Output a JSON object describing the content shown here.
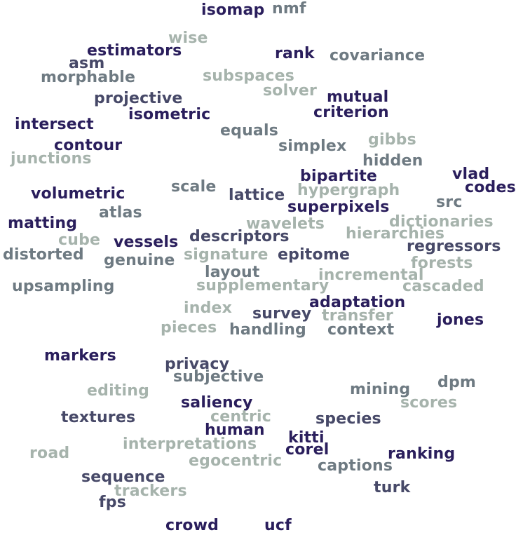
{
  "palette": {
    "darkest": "#2a1e5c",
    "dark": "#474968",
    "medium": "#6e7a82",
    "light": "#a6b3ac"
  },
  "words": [
    {
      "text": "isomap",
      "tone": "c1"
    },
    {
      "text": "nmf",
      "tone": "c3"
    },
    {
      "text": "wise",
      "tone": "c4"
    },
    {
      "text": "estimators",
      "tone": "c1"
    },
    {
      "text": "rank",
      "tone": "c1"
    },
    {
      "text": "covariance",
      "tone": "c3"
    },
    {
      "text": "asm",
      "tone": "c2"
    },
    {
      "text": "morphable",
      "tone": "c3"
    },
    {
      "text": "subspaces",
      "tone": "c4"
    },
    {
      "text": "solver",
      "tone": "c4"
    },
    {
      "text": "mutual",
      "tone": "c1"
    },
    {
      "text": "projective",
      "tone": "c2"
    },
    {
      "text": "criterion",
      "tone": "c1"
    },
    {
      "text": "isometric",
      "tone": "c1"
    },
    {
      "text": "intersect",
      "tone": "c1"
    },
    {
      "text": "equals",
      "tone": "c3"
    },
    {
      "text": "gibbs",
      "tone": "c4"
    },
    {
      "text": "contour",
      "tone": "c1"
    },
    {
      "text": "simplex",
      "tone": "c3"
    },
    {
      "text": "junctions",
      "tone": "c4"
    },
    {
      "text": "hidden",
      "tone": "c3"
    },
    {
      "text": "bipartite",
      "tone": "c1"
    },
    {
      "text": "vlad",
      "tone": "c1"
    },
    {
      "text": "scale",
      "tone": "c3"
    },
    {
      "text": "codes",
      "tone": "c1"
    },
    {
      "text": "volumetric",
      "tone": "c1"
    },
    {
      "text": "lattice",
      "tone": "c2"
    },
    {
      "text": "hypergraph",
      "tone": "c4"
    },
    {
      "text": "src",
      "tone": "c3"
    },
    {
      "text": "atlas",
      "tone": "c3"
    },
    {
      "text": "superpixels",
      "tone": "c1"
    },
    {
      "text": "matting",
      "tone": "c1"
    },
    {
      "text": "wavelets",
      "tone": "c4"
    },
    {
      "text": "dictionaries",
      "tone": "c4"
    },
    {
      "text": "hierarchies",
      "tone": "c4"
    },
    {
      "text": "descriptors",
      "tone": "c2"
    },
    {
      "text": "cube",
      "tone": "c4"
    },
    {
      "text": "vessels",
      "tone": "c1"
    },
    {
      "text": "regressors",
      "tone": "c2"
    },
    {
      "text": "distorted",
      "tone": "c3"
    },
    {
      "text": "signature",
      "tone": "c4"
    },
    {
      "text": "epitome",
      "tone": "c2"
    },
    {
      "text": "genuine",
      "tone": "c3"
    },
    {
      "text": "forests",
      "tone": "c4"
    },
    {
      "text": "layout",
      "tone": "c3"
    },
    {
      "text": "incremental",
      "tone": "c4"
    },
    {
      "text": "upsampling",
      "tone": "c3"
    },
    {
      "text": "supplementary",
      "tone": "c4"
    },
    {
      "text": "cascaded",
      "tone": "c4"
    },
    {
      "text": "adaptation",
      "tone": "c1"
    },
    {
      "text": "index",
      "tone": "c4"
    },
    {
      "text": "survey",
      "tone": "c2"
    },
    {
      "text": "transfer",
      "tone": "c4"
    },
    {
      "text": "jones",
      "tone": "c1"
    },
    {
      "text": "pieces",
      "tone": "c4"
    },
    {
      "text": "handling",
      "tone": "c3"
    },
    {
      "text": "context",
      "tone": "c3"
    },
    {
      "text": "markers",
      "tone": "c1"
    },
    {
      "text": "privacy",
      "tone": "c2"
    },
    {
      "text": "subjective",
      "tone": "c3"
    },
    {
      "text": "dpm",
      "tone": "c3"
    },
    {
      "text": "editing",
      "tone": "c4"
    },
    {
      "text": "mining",
      "tone": "c3"
    },
    {
      "text": "saliency",
      "tone": "c1"
    },
    {
      "text": "scores",
      "tone": "c4"
    },
    {
      "text": "textures",
      "tone": "c2"
    },
    {
      "text": "centric",
      "tone": "c4"
    },
    {
      "text": "species",
      "tone": "c2"
    },
    {
      "text": "human",
      "tone": "c1"
    },
    {
      "text": "kitti",
      "tone": "c1"
    },
    {
      "text": "interpretations",
      "tone": "c4"
    },
    {
      "text": "road",
      "tone": "c4"
    },
    {
      "text": "corel",
      "tone": "c1"
    },
    {
      "text": "ranking",
      "tone": "c1"
    },
    {
      "text": "egocentric",
      "tone": "c4"
    },
    {
      "text": "captions",
      "tone": "c3"
    },
    {
      "text": "sequence",
      "tone": "c2"
    },
    {
      "text": "turk",
      "tone": "c2"
    },
    {
      "text": "trackers",
      "tone": "c4"
    },
    {
      "text": "fps",
      "tone": "c2"
    },
    {
      "text": "crowd",
      "tone": "c1"
    },
    {
      "text": "ucf",
      "tone": "c1"
    }
  ]
}
